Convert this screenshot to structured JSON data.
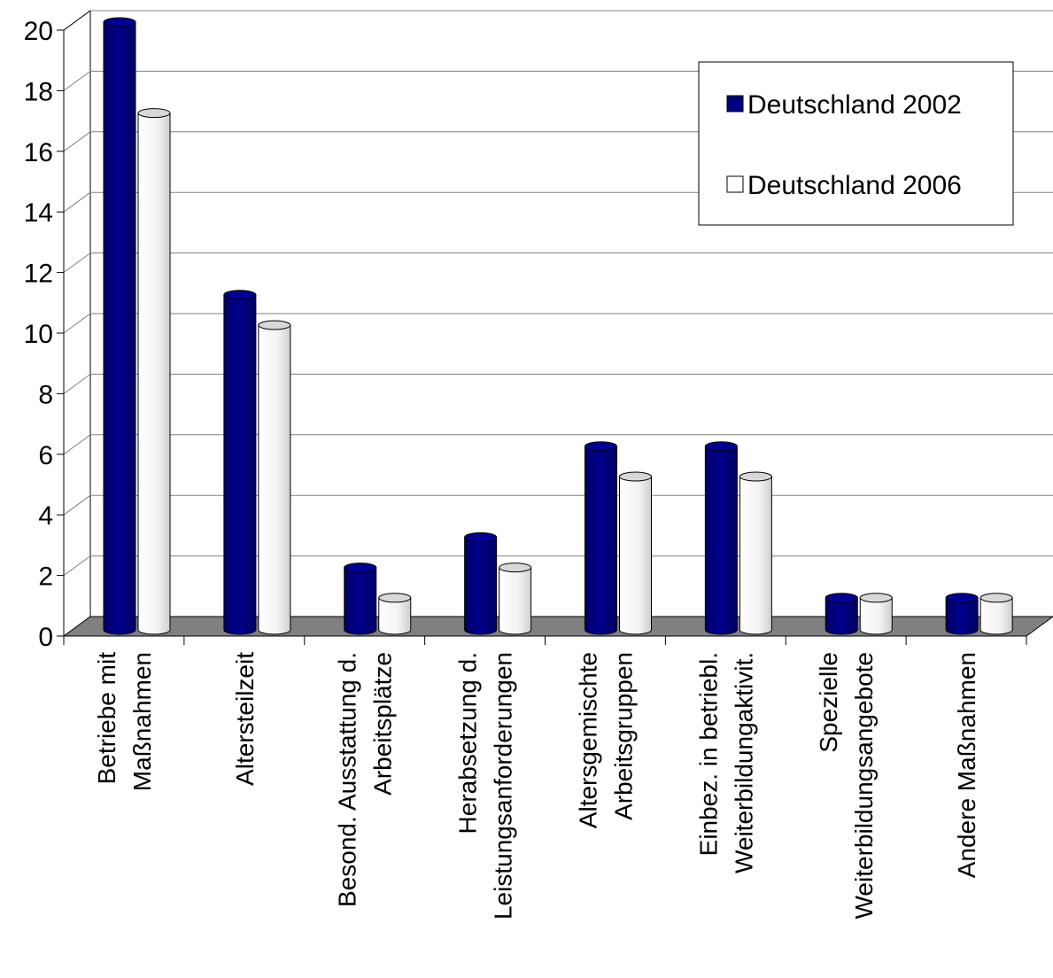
{
  "chart_data": {
    "type": "bar",
    "title": "",
    "xlabel": "",
    "ylabel": "",
    "ylim": [
      0,
      20
    ],
    "yticks": [
      0,
      2,
      4,
      6,
      8,
      10,
      12,
      14,
      16,
      18,
      20
    ],
    "grid": true,
    "legend_position": "top-right",
    "categories": [
      [
        "Betriebe mit",
        "Maßnahmen"
      ],
      [
        "Altersteilzeit"
      ],
      [
        "Besond. Ausstattung d.",
        "Arbeitsplätze"
      ],
      [
        "Herabsetzung d.",
        "Leistungsanforderungen"
      ],
      [
        "Altersgemischte",
        "Arbeitsgruppen"
      ],
      [
        "Einbez. in betriebl.",
        "Weiterbildungaktivit."
      ],
      [
        "Spezielle",
        "Weiterbildungsangebote"
      ],
      [
        "Andere Maßnahmen"
      ]
    ],
    "series": [
      {
        "name": "Deutschland 2002",
        "color": "#000080",
        "values": [
          20,
          11,
          2,
          3,
          6,
          6,
          1,
          1
        ]
      },
      {
        "name": "Deutschland 2006",
        "color": "#ffffff",
        "values": [
          17,
          10,
          1,
          2,
          5,
          5,
          1,
          1
        ]
      }
    ]
  }
}
